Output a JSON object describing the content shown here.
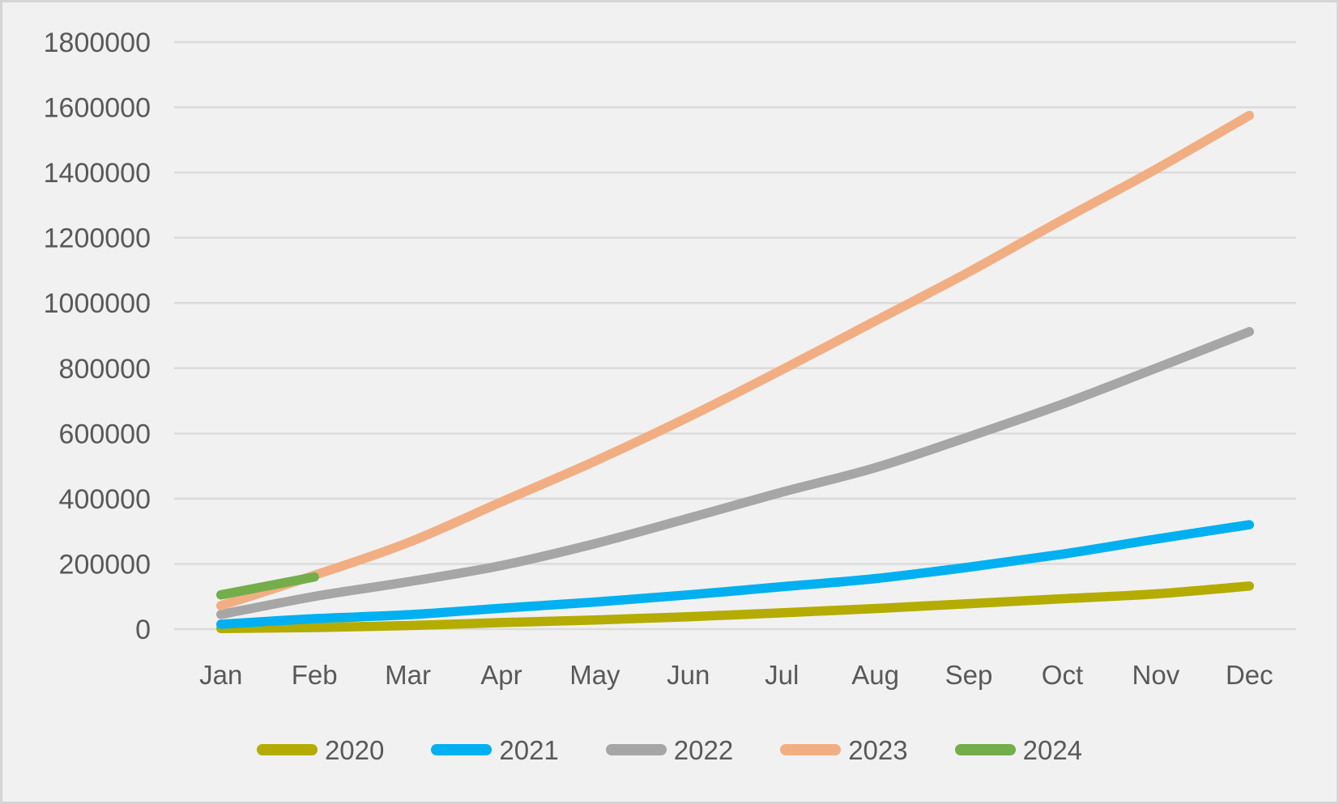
{
  "chart_data": {
    "type": "line",
    "title": "",
    "categories": [
      "Jan",
      "Feb",
      "Mar",
      "Apr",
      "May",
      "Jun",
      "Jul",
      "Aug",
      "Sep",
      "Oct",
      "Nov",
      "Dec"
    ],
    "series": [
      {
        "name": "2020",
        "color": "#B4AC00",
        "values": [
          2000,
          5000,
          11000,
          20000,
          28000,
          38000,
          50000,
          63000,
          78000,
          93000,
          108000,
          132000
        ]
      },
      {
        "name": "2021",
        "color": "#00B0F0",
        "values": [
          15000,
          32000,
          44000,
          64000,
          83000,
          105000,
          130000,
          155000,
          190000,
          230000,
          276000,
          320000
        ]
      },
      {
        "name": "2022",
        "color": "#A6A6A6",
        "values": [
          45000,
          100000,
          145000,
          195000,
          262000,
          340000,
          420000,
          495000,
          590000,
          690000,
          800000,
          912000
        ]
      },
      {
        "name": "2023",
        "color": "#F2AE83",
        "values": [
          72000,
          165000,
          265000,
          390000,
          515000,
          650000,
          795000,
          945000,
          1095000,
          1255000,
          1410000,
          1575000
        ]
      },
      {
        "name": "2024",
        "color": "#73AE4B",
        "values": [
          105000,
          160000,
          null,
          null,
          null,
          null,
          null,
          null,
          null,
          null,
          null,
          null
        ]
      }
    ],
    "y_axis": {
      "min": 0,
      "max": 1800000,
      "step": 200000,
      "tick_labels": [
        "0",
        "200000",
        "400000",
        "600000",
        "800000",
        "1000000",
        "1200000",
        "1400000",
        "1600000",
        "1800000"
      ]
    },
    "grid": true,
    "legend_position": "bottom",
    "legend_labels": [
      "2020",
      "2021",
      "2022",
      "2023",
      "2024"
    ]
  },
  "style": {
    "background_color": "#F1F1F1",
    "gridline_color": "#DBDBDB",
    "text_color": "#595959",
    "border_color": "#D5D5D5"
  }
}
